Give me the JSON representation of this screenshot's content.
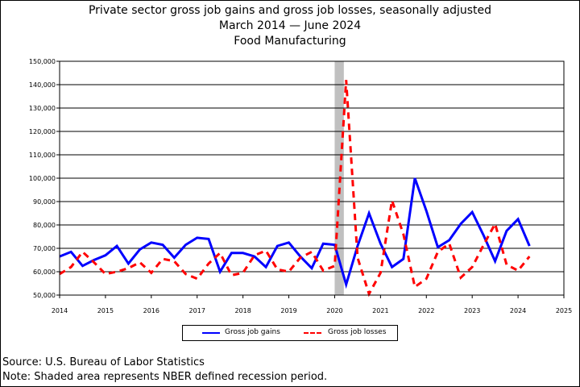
{
  "title": {
    "line1": "Private sector gross job gains and gross job losses, seasonally adjusted",
    "line2": "March 2014 — June 2024",
    "line3": "Food Manufacturing"
  },
  "legend": {
    "gains_label": "Gross job gains",
    "losses_label": "Gross job losses"
  },
  "footer": {
    "source": "Source: U.S. Bureau of Labor Statistics",
    "note": "Note: Shaded area represents NBER defined recession period."
  },
  "chart_data": {
    "type": "line",
    "title": "Private sector gross job gains and gross job losses, seasonally adjusted",
    "subtitle": "March 2014 — June 2024 / Food Manufacturing",
    "xlabel": "",
    "ylabel": "",
    "xlim": [
      2014,
      2025
    ],
    "ylim": [
      50000,
      150000
    ],
    "x_ticks": [
      2014,
      2015,
      2016,
      2017,
      2018,
      2019,
      2020,
      2021,
      2022,
      2023,
      2024,
      2025
    ],
    "x_tick_labels": [
      "2014",
      "2015",
      "2016",
      "2017",
      "2018",
      "2019",
      "2020",
      "2021",
      "2022",
      "2023",
      "2024",
      "2025"
    ],
    "y_ticks": [
      50000,
      60000,
      70000,
      80000,
      90000,
      100000,
      110000,
      120000,
      130000,
      140000,
      150000
    ],
    "y_tick_labels": [
      "50,000",
      "60,000",
      "70,000",
      "80,000",
      "90,000",
      "100,000",
      "110,000",
      "120,000",
      "130,000",
      "140,000",
      "150,000"
    ],
    "grid": "horizontal",
    "legend_position": "bottom",
    "recession": {
      "start": 2020.0,
      "end": 2020.2,
      "color": "#c0c0c0"
    },
    "x": [
      2014.0,
      2014.25,
      2014.5,
      2014.75,
      2015.0,
      2015.25,
      2015.5,
      2015.75,
      2016.0,
      2016.25,
      2016.5,
      2016.75,
      2017.0,
      2017.25,
      2017.5,
      2017.75,
      2018.0,
      2018.25,
      2018.5,
      2018.75,
      2019.0,
      2019.25,
      2019.5,
      2019.75,
      2020.0,
      2020.25,
      2020.5,
      2020.75,
      2021.0,
      2021.25,
      2021.5,
      2021.75,
      2022.0,
      2022.25,
      2022.5,
      2022.75,
      2023.0,
      2023.25,
      2023.5,
      2023.75,
      2024.0,
      2024.25
    ],
    "series": [
      {
        "name": "Gross job gains",
        "color": "#0000ff",
        "style": "solid",
        "values": [
          66500,
          68500,
          62500,
          65000,
          67000,
          71000,
          63500,
          69500,
          72500,
          71500,
          66000,
          71500,
          74500,
          74000,
          60000,
          68000,
          68000,
          66500,
          62000,
          71000,
          72500,
          66500,
          61500,
          72000,
          71500,
          54500,
          71000,
          85000,
          72000,
          62000,
          65500,
          100000,
          86000,
          70500,
          73500,
          80500,
          85500,
          75500,
          64500,
          77500,
          82500,
          71000
        ]
      },
      {
        "name": "Gross job losses",
        "color": "#ff0000",
        "style": "dashed",
        "values": [
          59000,
          62000,
          68500,
          64000,
          59000,
          60000,
          61500,
          64000,
          59500,
          65500,
          64500,
          59000,
          57000,
          63500,
          68000,
          58500,
          59500,
          67000,
          69000,
          61000,
          60000,
          66000,
          68500,
          60500,
          62500,
          142000,
          66000,
          50500,
          59500,
          90500,
          76000,
          53500,
          57000,
          68500,
          72000,
          57500,
          62000,
          71500,
          80500,
          63000,
          60500,
          66500
        ]
      }
    ]
  }
}
